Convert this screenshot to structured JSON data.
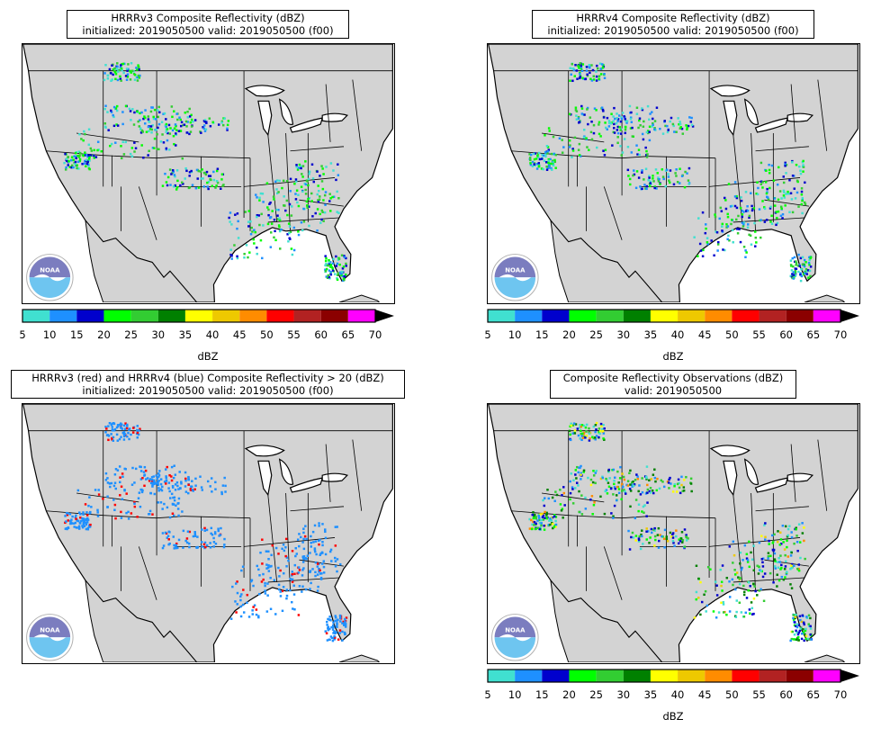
{
  "panels": [
    {
      "id": "hrrrv3",
      "title_line1": "HRRRv3 Composite Reflectivity (dBZ)",
      "title_line2": "initialized: 2019050500 valid: 2019050500 (f00)",
      "mode": "reflectivity",
      "has_colorbar": true
    },
    {
      "id": "hrrrv4",
      "title_line1": "HRRRv4 Composite Reflectivity (dBZ)",
      "title_line2": "initialized: 2019050500 valid: 2019050500 (f00)",
      "mode": "reflectivity",
      "has_colorbar": true
    },
    {
      "id": "compare",
      "title_line1": "HRRRv3 (red) and HRRRv4 (blue) Composite Reflectivity > 20 (dBZ)",
      "title_line2": "initialized: 2019050500 valid: 2019050500 (f00)",
      "mode": "compare",
      "has_colorbar": false
    },
    {
      "id": "obs",
      "title_line1": "Composite Reflectivity Observations (dBZ)",
      "title_line2": "valid: 2019050500",
      "mode": "observations",
      "has_colorbar": true
    }
  ],
  "colorbar": {
    "label": "dBZ",
    "ticks": [
      "5",
      "10",
      "15",
      "20",
      "25",
      "30",
      "35",
      "40",
      "45",
      "50",
      "55",
      "60",
      "65",
      "70"
    ],
    "colors": [
      "#40e0d0",
      "#1e90ff",
      "#0000cd",
      "#00ff00",
      "#32cd32",
      "#008000",
      "#ffff00",
      "#eec900",
      "#ff8c00",
      "#ff0000",
      "#b22222",
      "#8b0000",
      "#ff00ff"
    ],
    "extend": "max"
  },
  "logo": {
    "text": "NOAA"
  },
  "colors": {
    "land": "#d3d3d3",
    "water": "#ffffff",
    "borders": "#000000",
    "hrrrv3_color": "#ff0000",
    "hrrrv4_color": "#1e90ff"
  }
}
